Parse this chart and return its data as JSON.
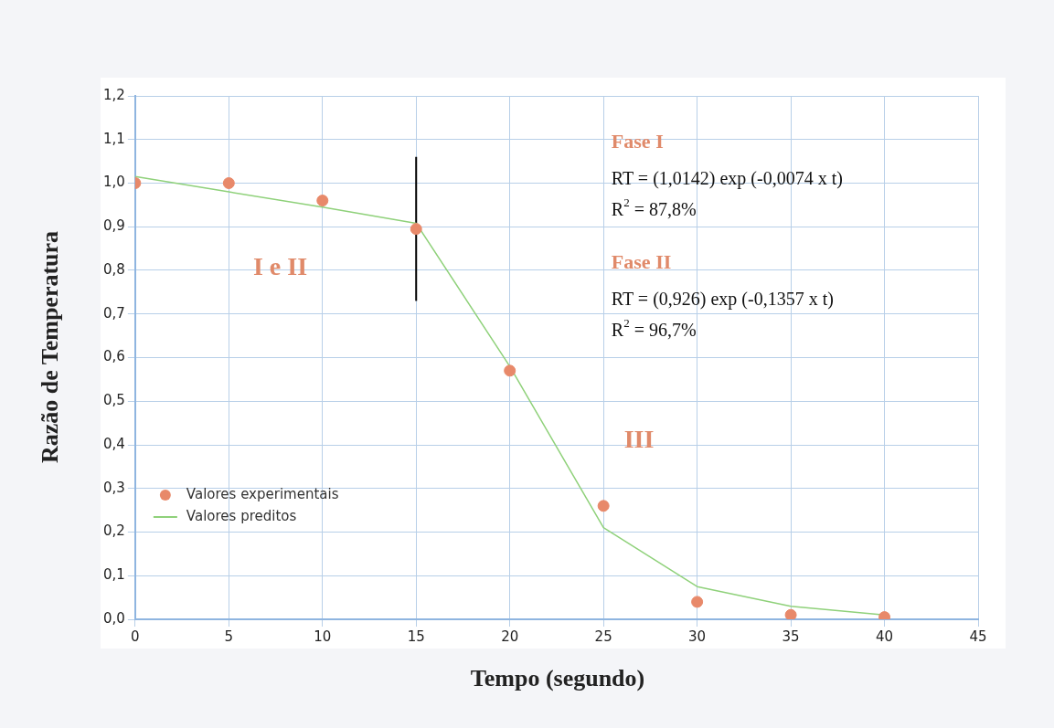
{
  "chart_data": {
    "type": "scatter",
    "xlabel": "Tempo (segundo)",
    "ylabel": "Razão de Temperatura",
    "x": [
      0,
      5,
      10,
      15,
      20,
      25,
      30,
      35,
      40
    ],
    "series": [
      {
        "name": "Valores experimentais",
        "color": "#e8896a",
        "marker": "circle",
        "values": [
          1.0,
          1.0,
          0.96,
          0.895,
          0.57,
          0.26,
          0.04,
          0.01,
          0.005
        ]
      },
      {
        "name": "Valores preditos",
        "type": "line",
        "color": "#8fd17a",
        "marker": "none",
        "values": [
          1.015,
          0.98,
          0.945,
          0.908,
          0.58,
          0.21,
          0.075,
          0.03,
          0.01
        ]
      },
      {
        "type": "line",
        "color": "#000000",
        "marker": "none",
        "x": [
          15,
          15
        ],
        "values": [
          0.73,
          1.06
        ]
      }
    ],
    "xlim": [
      0,
      45
    ],
    "xticks": [
      0,
      5,
      10,
      15,
      20,
      25,
      30,
      35,
      40,
      45
    ],
    "ylim": [
      0,
      1.2
    ],
    "yticks": [
      {
        "value": 0,
        "label": "0,0"
      },
      {
        "value": 0.1,
        "label": "0,1"
      },
      {
        "value": 0.2,
        "label": "0,2"
      },
      {
        "value": 0.3,
        "label": "0,3"
      },
      {
        "value": 0.4,
        "label": "0,4"
      },
      {
        "value": 0.5,
        "label": "0,5"
      },
      {
        "value": 0.6,
        "label": "0,6"
      },
      {
        "value": 0.7,
        "label": "0,7"
      },
      {
        "value": 0.8,
        "label": "0,8"
      },
      {
        "value": 0.9,
        "label": "0,9"
      },
      {
        "value": 1.0,
        "label": "1,0"
      },
      {
        "value": 1.1,
        "label": "1,1"
      },
      {
        "value": 1.2,
        "label": "1,2"
      }
    ],
    "grid": true,
    "legend": "bottom left",
    "annotations": [
      "I e II",
      "III",
      "Fase I",
      "RT = (1,0142) exp (-0,0074 x t)",
      "R$^{2}$ = 87,8%",
      "Fase II",
      "RT = (0,926) exp (-0,1357 x t)",
      "R$^{2}$ = 96,7%"
    ]
  }
}
